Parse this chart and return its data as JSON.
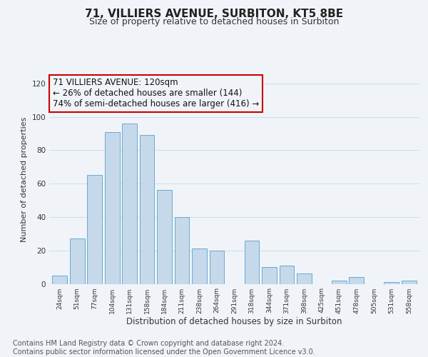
{
  "title": "71, VILLIERS AVENUE, SURBITON, KT5 8BE",
  "subtitle": "Size of property relative to detached houses in Surbiton",
  "xlabel": "Distribution of detached houses by size in Surbiton",
  "ylabel": "Number of detached properties",
  "categories": [
    "24sqm",
    "51sqm",
    "77sqm",
    "104sqm",
    "131sqm",
    "158sqm",
    "184sqm",
    "211sqm",
    "238sqm",
    "264sqm",
    "291sqm",
    "318sqm",
    "344sqm",
    "371sqm",
    "398sqm",
    "425sqm",
    "451sqm",
    "478sqm",
    "505sqm",
    "531sqm",
    "558sqm"
  ],
  "values": [
    5,
    27,
    65,
    91,
    96,
    89,
    56,
    40,
    21,
    20,
    0,
    26,
    10,
    11,
    6,
    0,
    2,
    4,
    0,
    1,
    2
  ],
  "bar_color": "#c5d9ea",
  "bar_edge_color": "#6aaad4",
  "highlight_bar_index": 4,
  "highlight_bar_edge_color": "#cc0000",
  "annotation_box_text": "71 VILLIERS AVENUE: 120sqm\n← 26% of detached houses are smaller (144)\n74% of semi-detached houses are larger (416) →",
  "annotation_box_edge_color": "#cc0000",
  "ylim": [
    0,
    125
  ],
  "yticks": [
    0,
    20,
    40,
    60,
    80,
    100,
    120
  ],
  "footer_text": "Contains HM Land Registry data © Crown copyright and database right 2024.\nContains public sector information licensed under the Open Government Licence v3.0.",
  "background_color": "#f0f4f8",
  "grid_color": "#d0dce8",
  "title_fontsize": 11,
  "subtitle_fontsize": 9,
  "xlabel_fontsize": 8.5,
  "ylabel_fontsize": 8,
  "annotation_fontsize": 8.5,
  "footer_fontsize": 7
}
